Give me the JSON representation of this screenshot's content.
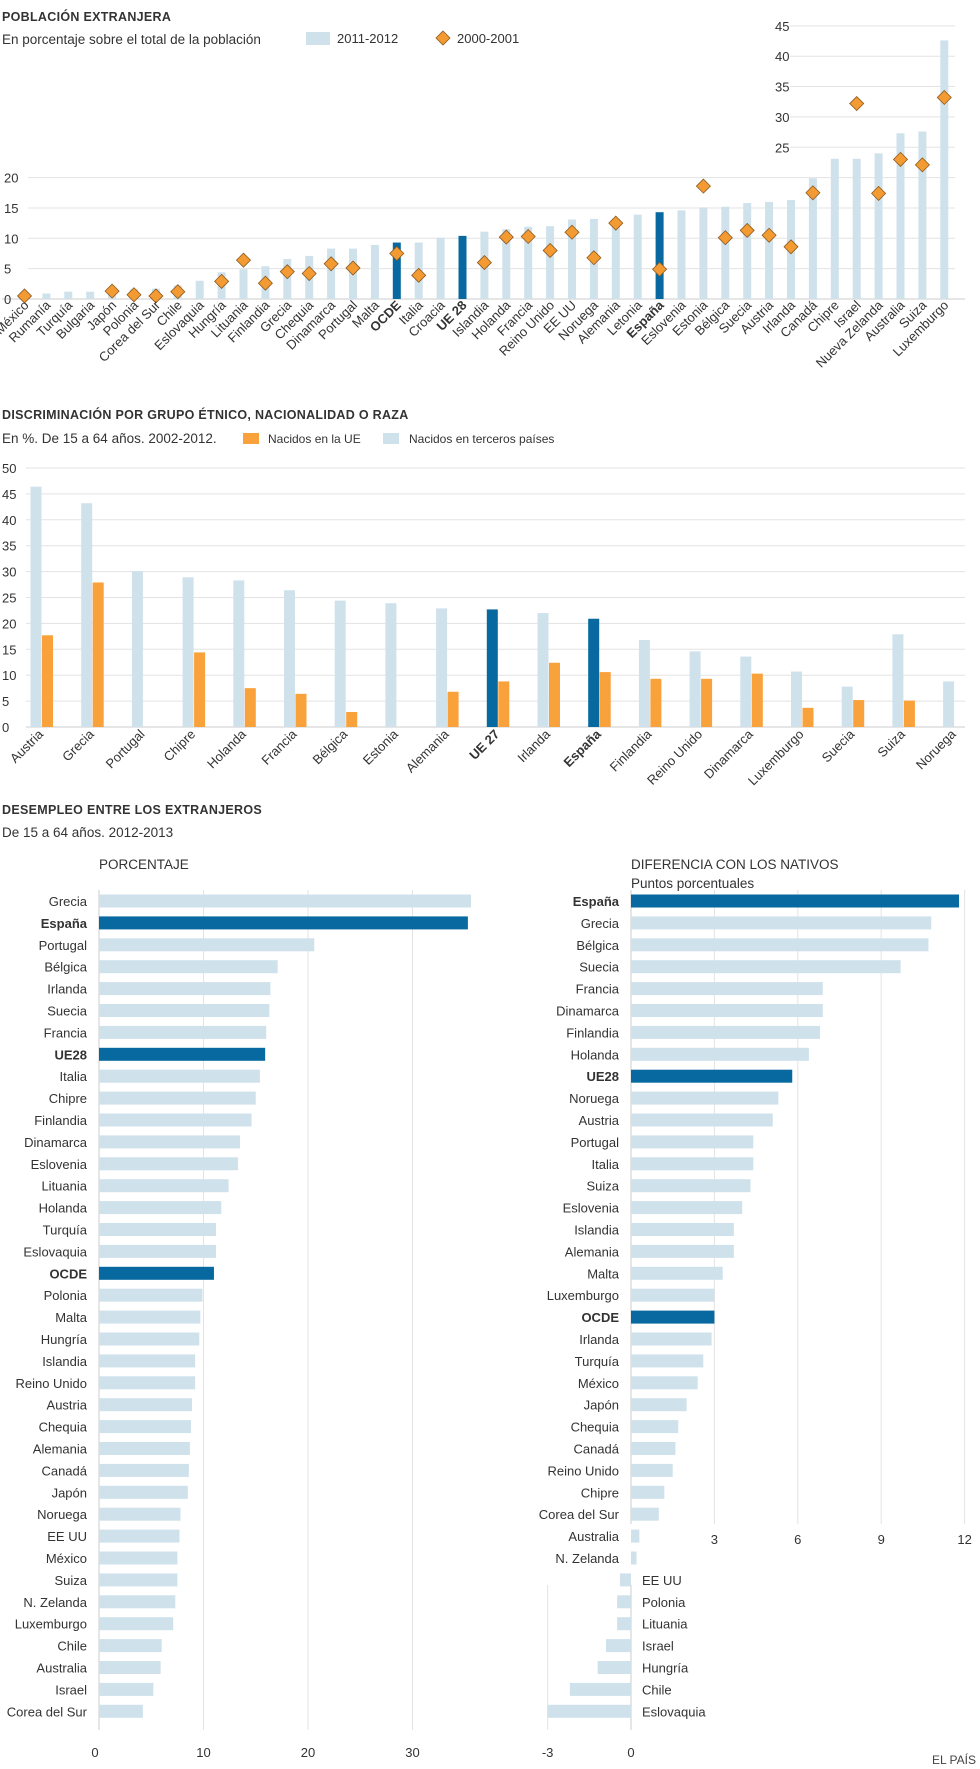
{
  "colors": {
    "light": "#cfe2ec",
    "dark": "#07699f",
    "orange": "#f9a13a",
    "diamond": "#f39a32",
    "grid": "#e3e3e3",
    "axis": "#cccccc"
  },
  "credit": "EL PAÍS",
  "chart_data": [
    {
      "type": "bar",
      "title": "POBLACIÓN EXTRANJERA",
      "subtitle": "En porcentaje sobre el total de la población",
      "legend": [
        "2011-2012",
        "2000-2001"
      ],
      "left_ticks": [
        0,
        5,
        10,
        15,
        20
      ],
      "right_ticks": [
        25,
        30,
        35,
        40,
        45
      ],
      "ylim": [
        0,
        45
      ],
      "categories": [
        "México",
        "Rumanía",
        "Turquía",
        "Bulgaria",
        "Japón",
        "Polonia",
        "Corea del Sur",
        "Chile",
        "Eslovaquia",
        "Hungría",
        "Lituania",
        "Finlandia",
        "Grecia",
        "Chequia",
        "Dinamarca",
        "Portugal",
        "Malta",
        "OCDE",
        "Italia",
        "Croacia",
        "UE 28",
        "Islandia",
        "Holanda",
        "Francia",
        "Reino Unido",
        "EE UU",
        "Noruega",
        "Alemania",
        "Letonia",
        "España",
        "Eslovenia",
        "Estonia",
        "Bélgica",
        "Suecia",
        "Austria",
        "Irlanda",
        "Canadá",
        "Chipre",
        "Israel",
        "Nueva Zelanda",
        "Australia",
        "Suiza",
        "Luxemburgo"
      ],
      "highlight": [
        "OCDE",
        "UE 28",
        "España"
      ],
      "series": [
        {
          "name": "2011-2012",
          "values": [
            0.9,
            0.9,
            1.2,
            1.2,
            1.6,
            1.6,
            1.7,
            2.2,
            3.0,
            4.4,
            4.9,
            5.4,
            6.6,
            7.1,
            8.3,
            8.3,
            8.9,
            9.3,
            9.3,
            10.1,
            10.4,
            11.1,
            11.5,
            11.9,
            12.0,
            13.1,
            13.2,
            13.2,
            13.9,
            14.3,
            14.6,
            15.1,
            15.2,
            15.8,
            16.0,
            16.3,
            19.9,
            23.1,
            23.1,
            24.0,
            27.3,
            27.6,
            42.6
          ]
        },
        {
          "name": "2000-2001",
          "values": [
            0.5,
            null,
            null,
            null,
            1.3,
            0.7,
            0.5,
            1.2,
            null,
            2.9,
            6.4,
            2.6,
            4.5,
            4.2,
            5.8,
            5.1,
            null,
            7.5,
            3.9,
            null,
            null,
            6.0,
            10.2,
            10.3,
            8.0,
            11.0,
            6.8,
            12.5,
            null,
            4.9,
            null,
            18.6,
            10.1,
            11.3,
            10.5,
            8.6,
            17.5,
            null,
            32.2,
            17.4,
            23.0,
            22.1,
            33.2
          ]
        }
      ]
    },
    {
      "type": "bar",
      "title": "DISCRIMINACIÓN POR GRUPO ÉTNICO, NACIONALIDAD O RAZA",
      "subtitle": "En %. De 15 a 64 años. 2002-2012.",
      "legend": [
        "Nacidos en la UE",
        "Nacidos en terceros países"
      ],
      "ticks": [
        0,
        5,
        10,
        15,
        20,
        25,
        30,
        35,
        40,
        45,
        50
      ],
      "ylim": [
        0,
        50
      ],
      "categories": [
        "Austria",
        "Grecia",
        "Portugal",
        "Chipre",
        "Holanda",
        "Francia",
        "Bélgica",
        "Estonia",
        "Alemania",
        "UE 27",
        "Irlanda",
        "España",
        "Finlandia",
        "Reino Unido",
        "Dinamarca",
        "Luxemburgo",
        "Suecia",
        "Suiza",
        "Noruega"
      ],
      "highlight": [
        "UE 27",
        "España"
      ],
      "series": [
        {
          "name": "Nacidos en terceros países",
          "values": [
            46.4,
            43.2,
            30.1,
            28.9,
            28.3,
            26.4,
            24.4,
            23.9,
            22.9,
            22.7,
            22.0,
            20.9,
            16.8,
            14.6,
            13.6,
            10.7,
            7.8,
            17.9,
            8.8
          ]
        },
        {
          "name": "Nacidos en la UE",
          "values": [
            17.7,
            27.9,
            null,
            14.4,
            7.5,
            6.4,
            2.9,
            null,
            6.8,
            8.8,
            12.4,
            10.6,
            9.3,
            9.3,
            10.3,
            3.7,
            5.2,
            5.1,
            null
          ]
        }
      ]
    },
    {
      "type": "bar",
      "orientation": "horizontal",
      "title": "DESEMPLEO ENTRE LOS EXTRANJEROS",
      "subtitle": "De 15 a 64 años. 2012-2013",
      "panel_title": "PORCENTAJE",
      "ticks": [
        0,
        10,
        20,
        30
      ],
      "xlim": [
        0,
        40
      ],
      "categories": [
        "Grecia",
        "España",
        "Portugal",
        "Bélgica",
        "Irlanda",
        "Suecia",
        "Francia",
        "UE28",
        "Italia",
        "Chipre",
        "Finlandia",
        "Dinamarca",
        "Eslovenia",
        "Lituania",
        "Holanda",
        "Turquía",
        "Eslovaquia",
        "OCDE",
        "Polonia",
        "Malta",
        "Hungría",
        "Islandia",
        "Reino Unido",
        "Austria",
        "Chequia",
        "Alemania",
        "Canadá",
        "Japón",
        "Noruega",
        "EE UU",
        "México",
        "Suiza",
        "N. Zelanda",
        "Luxemburgo",
        "Chile",
        "Australia",
        "Israel",
        "Corea del Sur"
      ],
      "highlight": [
        "España",
        "UE28",
        "OCDE"
      ],
      "values": [
        35.6,
        35.3,
        20.6,
        17.1,
        16.4,
        16.3,
        16.0,
        15.9,
        15.4,
        15.0,
        14.6,
        13.5,
        13.3,
        12.4,
        11.7,
        11.2,
        11.2,
        11.0,
        9.9,
        9.7,
        9.6,
        9.2,
        9.2,
        8.9,
        8.8,
        8.7,
        8.6,
        8.5,
        7.8,
        7.7,
        7.5,
        7.5,
        7.3,
        7.1,
        6.0,
        5.9,
        5.2,
        4.2
      ]
    },
    {
      "type": "bar",
      "orientation": "horizontal",
      "panel_title": "DIFERENCIA CON LOS NATIVOS",
      "panel_subtitle": "Puntos porcentuales",
      "ticks_pos": [
        3,
        6,
        9,
        12
      ],
      "ticks_neg": [
        -3,
        0
      ],
      "xlim": [
        -3,
        12
      ],
      "categories": [
        "España",
        "Grecia",
        "Bélgica",
        "Suecia",
        "Francia",
        "Dinamarca",
        "Finlandia",
        "Holanda",
        "UE28",
        "Noruega",
        "Austria",
        "Portugal",
        "Italia",
        "Suiza",
        "Eslovenia",
        "Islandia",
        "Alemania",
        "Malta",
        "Luxemburgo",
        "OCDE",
        "Irlanda",
        "Turquía",
        "México",
        "Japón",
        "Chequia",
        "Canadá",
        "Reino Unido",
        "Chipre",
        "Corea del Sur",
        "Australia",
        "N. Zelanda",
        "EE UU",
        "Polonia",
        "Lituania",
        "Israel",
        "Hungría",
        "Chile",
        "Eslovaquia"
      ],
      "highlight": [
        "España",
        "UE28",
        "OCDE"
      ],
      "values": [
        11.8,
        10.8,
        10.7,
        9.7,
        6.9,
        6.9,
        6.8,
        6.4,
        5.8,
        5.3,
        5.1,
        4.4,
        4.4,
        4.3,
        4.0,
        3.7,
        3.7,
        3.3,
        3.0,
        3.0,
        2.9,
        2.6,
        2.4,
        2.0,
        1.7,
        1.6,
        1.5,
        1.2,
        1.0,
        0.3,
        0.2,
        -0.4,
        -0.5,
        -0.5,
        -0.9,
        -1.2,
        -2.2,
        -3.0
      ]
    }
  ]
}
